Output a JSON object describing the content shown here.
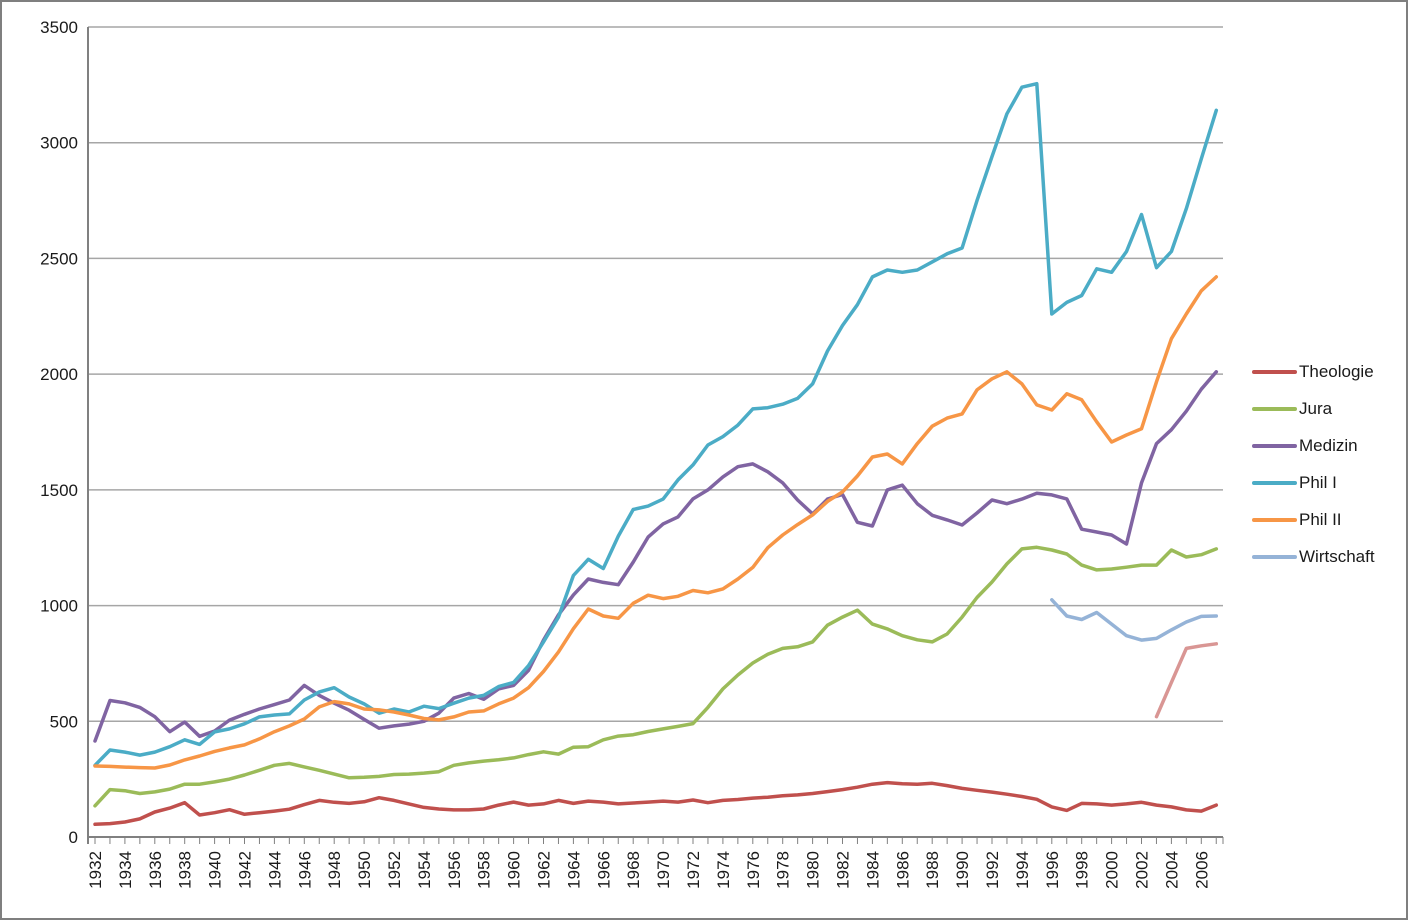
{
  "figure": {
    "background": "#FFFFFF",
    "border_color": "#7F7F7F"
  },
  "chart_data": {
    "type": "line",
    "title": "",
    "xlabel": "",
    "ylabel": "",
    "ylim": [
      0,
      3500
    ],
    "y_ticks": [
      0,
      500,
      1000,
      1500,
      2000,
      2500,
      3000,
      3500
    ],
    "y_tick_labels": [
      "0",
      "500",
      "1000",
      "1500",
      "2000",
      "2500",
      "3000",
      "3500"
    ],
    "year_start": 1932,
    "year_end": 2007,
    "x_tick_labels": [
      "1932",
      "1934",
      "1936",
      "1938",
      "1940",
      "1942",
      "1944",
      "1946",
      "1948",
      "1950",
      "1952",
      "1954",
      "1956",
      "1958",
      "1960",
      "1962",
      "1964",
      "1966",
      "1968",
      "1970",
      "1972",
      "1974",
      "1976",
      "1978",
      "1980",
      "1982",
      "1984",
      "1986",
      "1988",
      "1990",
      "1992",
      "1994",
      "1996",
      "1998",
      "2000",
      "2002",
      "2004",
      "2006"
    ],
    "grid": true,
    "grid_color": "#A6A6A6",
    "axis_color": "#808080",
    "legend_position": "right",
    "series": [
      {
        "label": "Theologie",
        "color": "#C0504D",
        "year_start": 1932,
        "in_legend": true,
        "values": [
          55,
          58,
          65,
          78,
          108,
          125,
          148,
          95,
          105,
          118,
          98,
          105,
          112,
          120,
          140,
          158,
          150,
          145,
          152,
          170,
          158,
          143,
          128,
          121,
          117,
          117,
          121,
          138,
          151,
          138,
          143,
          158,
          145,
          155,
          151,
          143,
          147,
          151,
          155,
          151,
          160,
          148,
          158,
          162,
          168,
          172,
          178,
          182,
          188,
          196,
          205,
          215,
          228,
          235,
          230,
          228,
          232,
          222,
          210,
          202,
          194,
          185,
          175,
          163,
          130,
          115,
          145,
          143,
          138,
          143,
          150,
          138,
          130,
          117,
          112,
          138
        ]
      },
      {
        "label": "Jura",
        "color": "#9BBB59",
        "year_start": 1932,
        "in_legend": true,
        "values": [
          135,
          205,
          200,
          188,
          195,
          207,
          228,
          228,
          238,
          250,
          268,
          288,
          310,
          318,
          303,
          288,
          272,
          256,
          258,
          262,
          270,
          272,
          276,
          282,
          310,
          320,
          328,
          334,
          342,
          356,
          368,
          358,
          388,
          390,
          420,
          436,
          442,
          456,
          467,
          478,
          490,
          560,
          640,
          700,
          752,
          790,
          815,
          822,
          843,
          915,
          950,
          980,
          920,
          899,
          870,
          852,
          843,
          877,
          950,
          1035,
          1102,
          1180,
          1245,
          1252,
          1240,
          1223,
          1175,
          1154,
          1158,
          1166,
          1175,
          1175,
          1240,
          1210,
          1220,
          1245
        ]
      },
      {
        "label": "Medizin",
        "color": "#8064A2",
        "year_start": 1932,
        "in_legend": true,
        "values": [
          415,
          590,
          580,
          560,
          520,
          455,
          497,
          435,
          458,
          505,
          530,
          553,
          572,
          592,
          655,
          612,
          578,
          548,
          508,
          470,
          480,
          488,
          500,
          535,
          600,
          620,
          595,
          640,
          655,
          720,
          851,
          960,
          1046,
          1115,
          1100,
          1090,
          1188,
          1296,
          1353,
          1383,
          1461,
          1500,
          1556,
          1600,
          1612,
          1578,
          1530,
          1456,
          1396,
          1460,
          1480,
          1360,
          1344,
          1500,
          1520,
          1440,
          1390,
          1370,
          1348,
          1400,
          1456,
          1440,
          1460,
          1485,
          1478,
          1461,
          1330,
          1318,
          1305,
          1266,
          1530,
          1700,
          1760,
          1840,
          1935,
          2010
        ]
      },
      {
        "label": "Phil I",
        "color": "#4BACC6",
        "year_start": 1932,
        "in_legend": true,
        "values": [
          310,
          376,
          367,
          354,
          367,
          390,
          420,
          400,
          454,
          467,
          489,
          519,
          527,
          532,
          592,
          627,
          645,
          605,
          575,
          535,
          553,
          540,
          565,
          555,
          578,
          600,
          612,
          650,
          668,
          740,
          843,
          950,
          1130,
          1200,
          1160,
          1300,
          1415,
          1430,
          1460,
          1543,
          1608,
          1694,
          1730,
          1780,
          1850,
          1855,
          1870,
          1895,
          1958,
          2100,
          2210,
          2300,
          2420,
          2450,
          2440,
          2450,
          2485,
          2520,
          2545,
          2750,
          2940,
          3125,
          3240,
          3255,
          2260,
          2310,
          2340,
          2455,
          2440,
          2530,
          2690,
          2460,
          2530,
          2715,
          2930,
          3140
        ]
      },
      {
        "label": "Phil II",
        "color": "#F79646",
        "year_start": 1932,
        "in_legend": true,
        "values": [
          307,
          305,
          302,
          300,
          298,
          311,
          333,
          350,
          370,
          385,
          398,
          424,
          455,
          480,
          510,
          562,
          585,
          575,
          553,
          549,
          540,
          527,
          512,
          506,
          519,
          540,
          545,
          575,
          600,
          645,
          715,
          800,
          900,
          985,
          955,
          945,
          1010,
          1045,
          1030,
          1040,
          1065,
          1055,
          1072,
          1115,
          1165,
          1250,
          1305,
          1350,
          1392,
          1450,
          1491,
          1560,
          1642,
          1655,
          1612,
          1700,
          1775,
          1810,
          1828,
          1932,
          1980,
          2010,
          1958,
          1867,
          1845,
          1915,
          1889,
          1794,
          1707,
          1737,
          1764,
          1967,
          2153,
          2260,
          2360,
          2420
        ]
      },
      {
        "label": "Wirtschaft",
        "color": "#95B3D7",
        "year_start": 1996,
        "in_legend": true,
        "values": [
          1025,
          955,
          940,
          970,
          920,
          870,
          851,
          858,
          895,
          929,
          953,
          955
        ]
      },
      {
        "label": "",
        "color": "#D99694",
        "year_start": 2003,
        "in_legend": false,
        "values": [
          520,
          668,
          815,
          826,
          835
        ]
      }
    ]
  },
  "legend": {
    "entries": [
      "Theologie",
      "Jura",
      "Medizin",
      "Phil I",
      "Phil II",
      "Wirtschaft"
    ]
  }
}
